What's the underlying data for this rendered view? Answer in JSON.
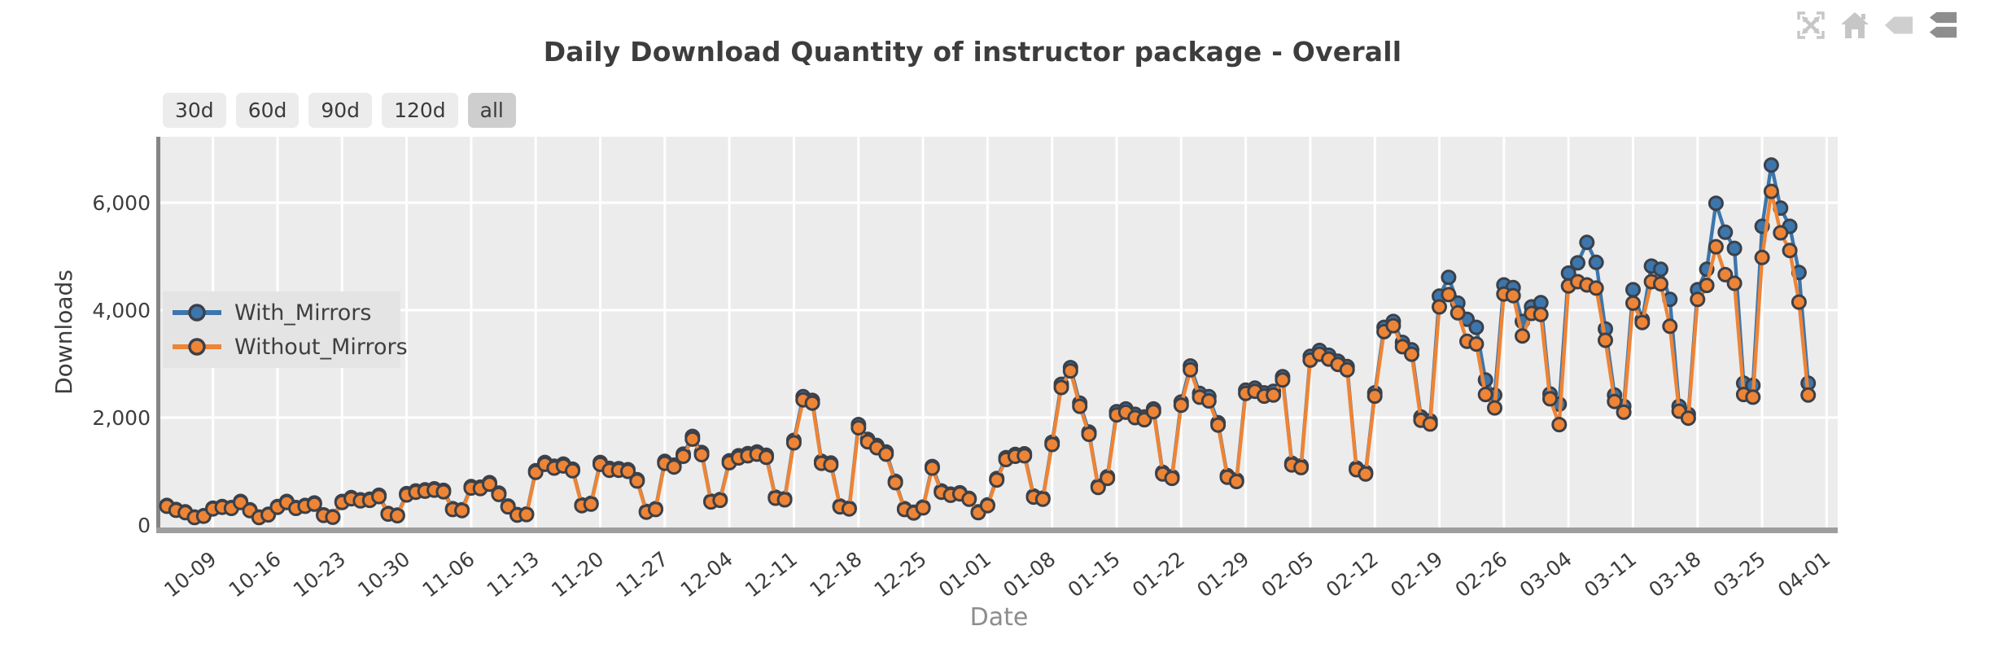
{
  "header": {
    "title": "Daily Download Quantity of instructor package - Overall"
  },
  "range_buttons": [
    {
      "label": "30d",
      "active": false
    },
    {
      "label": "60d",
      "active": false
    },
    {
      "label": "90d",
      "active": false
    },
    {
      "label": "120d",
      "active": false
    },
    {
      "label": "all",
      "active": true
    }
  ],
  "toolbar": {
    "icons": [
      {
        "name": "fullscreen-icon",
        "color": "#c6c6c6"
      },
      {
        "name": "home-icon",
        "color": "#c6c6c6"
      },
      {
        "name": "tag-icon",
        "color": "#cfcfcf"
      },
      {
        "name": "tags-stack-icon",
        "color": "#8e8e8e"
      }
    ]
  },
  "chart_data": {
    "type": "line",
    "title": "Daily Download Quantity of instructor package - Overall",
    "xlabel": "Date",
    "ylabel": "Downloads",
    "grid": true,
    "legend_position": "upper-left-inside",
    "plot_bg": "#ececec",
    "grid_color": "#ffffff",
    "marker_edge": "#3b4049",
    "ylim": [
      0,
      7250
    ],
    "y_ticks": [
      {
        "value": 0,
        "label": "0"
      },
      {
        "value": 2000,
        "label": "2,000"
      },
      {
        "value": 4000,
        "label": "4,000"
      },
      {
        "value": 6000,
        "label": "6,000"
      }
    ],
    "x_tick_labels": [
      "10-09",
      "10-16",
      "10-23",
      "10-30",
      "11-06",
      "11-13",
      "11-20",
      "11-27",
      "12-04",
      "12-11",
      "12-18",
      "12-25",
      "01-01",
      "01-08",
      "01-15",
      "01-22",
      "01-29",
      "02-05",
      "02-12",
      "02-19",
      "02-26",
      "03-04",
      "03-11",
      "03-18",
      "03-25",
      "04-01"
    ],
    "x_tick_indices": [
      5,
      12,
      19,
      26,
      33,
      40,
      47,
      54,
      61,
      68,
      75,
      82,
      89,
      96,
      103,
      110,
      117,
      124,
      131,
      138,
      145,
      152,
      159,
      166,
      173,
      180
    ],
    "dates": [
      "10-04",
      "10-05",
      "10-06",
      "10-07",
      "10-08",
      "10-09",
      "10-10",
      "10-11",
      "10-12",
      "10-13",
      "10-14",
      "10-15",
      "10-16",
      "10-17",
      "10-18",
      "10-19",
      "10-20",
      "10-21",
      "10-22",
      "10-23",
      "10-24",
      "10-25",
      "10-26",
      "10-27",
      "10-28",
      "10-29",
      "10-30",
      "10-31",
      "11-01",
      "11-02",
      "11-03",
      "11-04",
      "11-05",
      "11-06",
      "11-07",
      "11-08",
      "11-09",
      "11-10",
      "11-11",
      "11-12",
      "11-13",
      "11-14",
      "11-15",
      "11-16",
      "11-17",
      "11-18",
      "11-19",
      "11-20",
      "11-21",
      "11-22",
      "11-23",
      "11-24",
      "11-25",
      "11-26",
      "11-27",
      "11-28",
      "11-29",
      "11-30",
      "12-01",
      "12-02",
      "12-03",
      "12-04",
      "12-05",
      "12-06",
      "12-07",
      "12-08",
      "12-09",
      "12-10",
      "12-11",
      "12-12",
      "12-13",
      "12-14",
      "12-15",
      "12-16",
      "12-17",
      "12-18",
      "12-19",
      "12-20",
      "12-21",
      "12-22",
      "12-23",
      "12-24",
      "12-25",
      "12-26",
      "12-27",
      "12-28",
      "12-29",
      "12-30",
      "12-31",
      "01-01",
      "01-02",
      "01-03",
      "01-04",
      "01-05",
      "01-06",
      "01-07",
      "01-08",
      "01-09",
      "01-10",
      "01-11",
      "01-12",
      "01-13",
      "01-14",
      "01-15",
      "01-16",
      "01-17",
      "01-18",
      "01-19",
      "01-20",
      "01-21",
      "01-22",
      "01-23",
      "01-24",
      "01-25",
      "01-26",
      "01-27",
      "01-28",
      "01-29",
      "01-30",
      "01-31",
      "02-01",
      "02-02",
      "02-03",
      "02-04",
      "02-05",
      "02-06",
      "02-07",
      "02-08",
      "02-09",
      "02-10",
      "02-11",
      "02-12",
      "02-13",
      "02-14",
      "02-15",
      "02-16",
      "02-17",
      "02-18",
      "02-19",
      "02-20",
      "02-21",
      "02-22",
      "02-23",
      "02-24",
      "02-25",
      "02-26",
      "02-27",
      "02-28",
      "02-29",
      "03-01",
      "03-02",
      "03-03",
      "03-04",
      "03-05",
      "03-06",
      "03-07",
      "03-08",
      "03-09",
      "03-10",
      "03-11",
      "03-12",
      "03-13",
      "03-14",
      "03-15",
      "03-16",
      "03-17",
      "03-18",
      "03-19",
      "03-20",
      "03-21",
      "03-22",
      "03-23",
      "03-24",
      "03-25",
      "03-26",
      "03-27",
      "03-28",
      "03-29",
      "03-30"
    ],
    "series": [
      {
        "name": "With_Mirrors",
        "color": "#3c76ac",
        "values": [
          365,
          290,
          245,
          150,
          175,
          315,
          345,
          325,
          440,
          285,
          150,
          200,
          345,
          440,
          325,
          365,
          410,
          190,
          155,
          440,
          510,
          470,
          480,
          555,
          215,
          185,
          585,
          635,
          655,
          675,
          645,
          305,
          285,
          715,
          705,
          790,
          595,
          355,
          195,
          205,
          1010,
          1165,
          1095,
          1135,
          1040,
          375,
          405,
          1165,
          1055,
          1050,
          1030,
          845,
          255,
          305,
          1185,
          1115,
          1320,
          1650,
          1350,
          445,
          475,
          1195,
          1290,
          1330,
          1360,
          1300,
          520,
          490,
          1575,
          2390,
          2320,
          1185,
          1155,
          355,
          315,
          1870,
          1595,
          1480,
          1360,
          815,
          305,
          240,
          335,
          1090,
          635,
          575,
          600,
          495,
          245,
          375,
          865,
          1255,
          1315,
          1325,
          540,
          500,
          1540,
          2620,
          2930,
          2270,
          1730,
          725,
          900,
          2110,
          2160,
          2060,
          2010,
          2160,
          980,
          900,
          2290,
          2960,
          2450,
          2390,
          1905,
          920,
          840,
          2510,
          2550,
          2460,
          2490,
          2760,
          1150,
          1100,
          3140,
          3250,
          3160,
          3050,
          2950,
          1060,
          980,
          2460,
          3680,
          3790,
          3400,
          3260,
          2010,
          1940,
          4260,
          4610,
          4130,
          3830,
          3680,
          2700,
          2420,
          4470,
          4420,
          3790,
          4060,
          4140,
          2440,
          2250,
          4690,
          4880,
          5260,
          4890,
          3650,
          2420,
          2210,
          4380,
          3820,
          4820,
          4760,
          4200,
          2210,
          2060,
          4380,
          4760,
          5990,
          5450,
          5150,
          2640,
          2600,
          5560,
          6700,
          5900,
          5560,
          4700,
          2640
        ]
      },
      {
        "name": "Without_Mirrors",
        "color": "#ee8435",
        "values": [
          350,
          275,
          230,
          140,
          165,
          300,
          330,
          310,
          420,
          270,
          140,
          190,
          330,
          420,
          310,
          350,
          390,
          180,
          145,
          420,
          490,
          450,
          460,
          530,
          205,
          175,
          560,
          610,
          630,
          650,
          620,
          290,
          270,
          690,
          680,
          760,
          570,
          340,
          185,
          195,
          980,
          1130,
          1060,
          1100,
          1010,
          360,
          390,
          1130,
          1020,
          1020,
          1000,
          820,
          240,
          290,
          1150,
          1080,
          1280,
          1600,
          1310,
          430,
          460,
          1160,
          1250,
          1290,
          1320,
          1260,
          500,
          470,
          1530,
          2330,
          2270,
          1150,
          1120,
          340,
          300,
          1810,
          1550,
          1440,
          1320,
          790,
          290,
          225,
          320,
          1060,
          610,
          555,
          580,
          480,
          230,
          360,
          840,
          1220,
          1280,
          1290,
          520,
          480,
          1500,
          2560,
          2870,
          2210,
          1690,
          700,
          870,
          2050,
          2100,
          2000,
          1960,
          2110,
          950,
          870,
          2230,
          2890,
          2380,
          2310,
          1860,
          890,
          810,
          2450,
          2490,
          2400,
          2420,
          2700,
          1120,
          1070,
          3070,
          3180,
          3090,
          2990,
          2890,
          1030,
          950,
          2400,
          3600,
          3710,
          3320,
          3180,
          1950,
          1880,
          4060,
          4290,
          3950,
          3420,
          3370,
          2430,
          2180,
          4300,
          4270,
          3520,
          3940,
          3920,
          2350,
          1870,
          4450,
          4530,
          4470,
          4410,
          3440,
          2300,
          2100,
          4130,
          3770,
          4530,
          4490,
          3700,
          2120,
          1990,
          4200,
          4460,
          5180,
          4660,
          4500,
          2430,
          2380,
          4980,
          6210,
          5440,
          5110,
          4150,
          2420
        ]
      }
    ]
  }
}
